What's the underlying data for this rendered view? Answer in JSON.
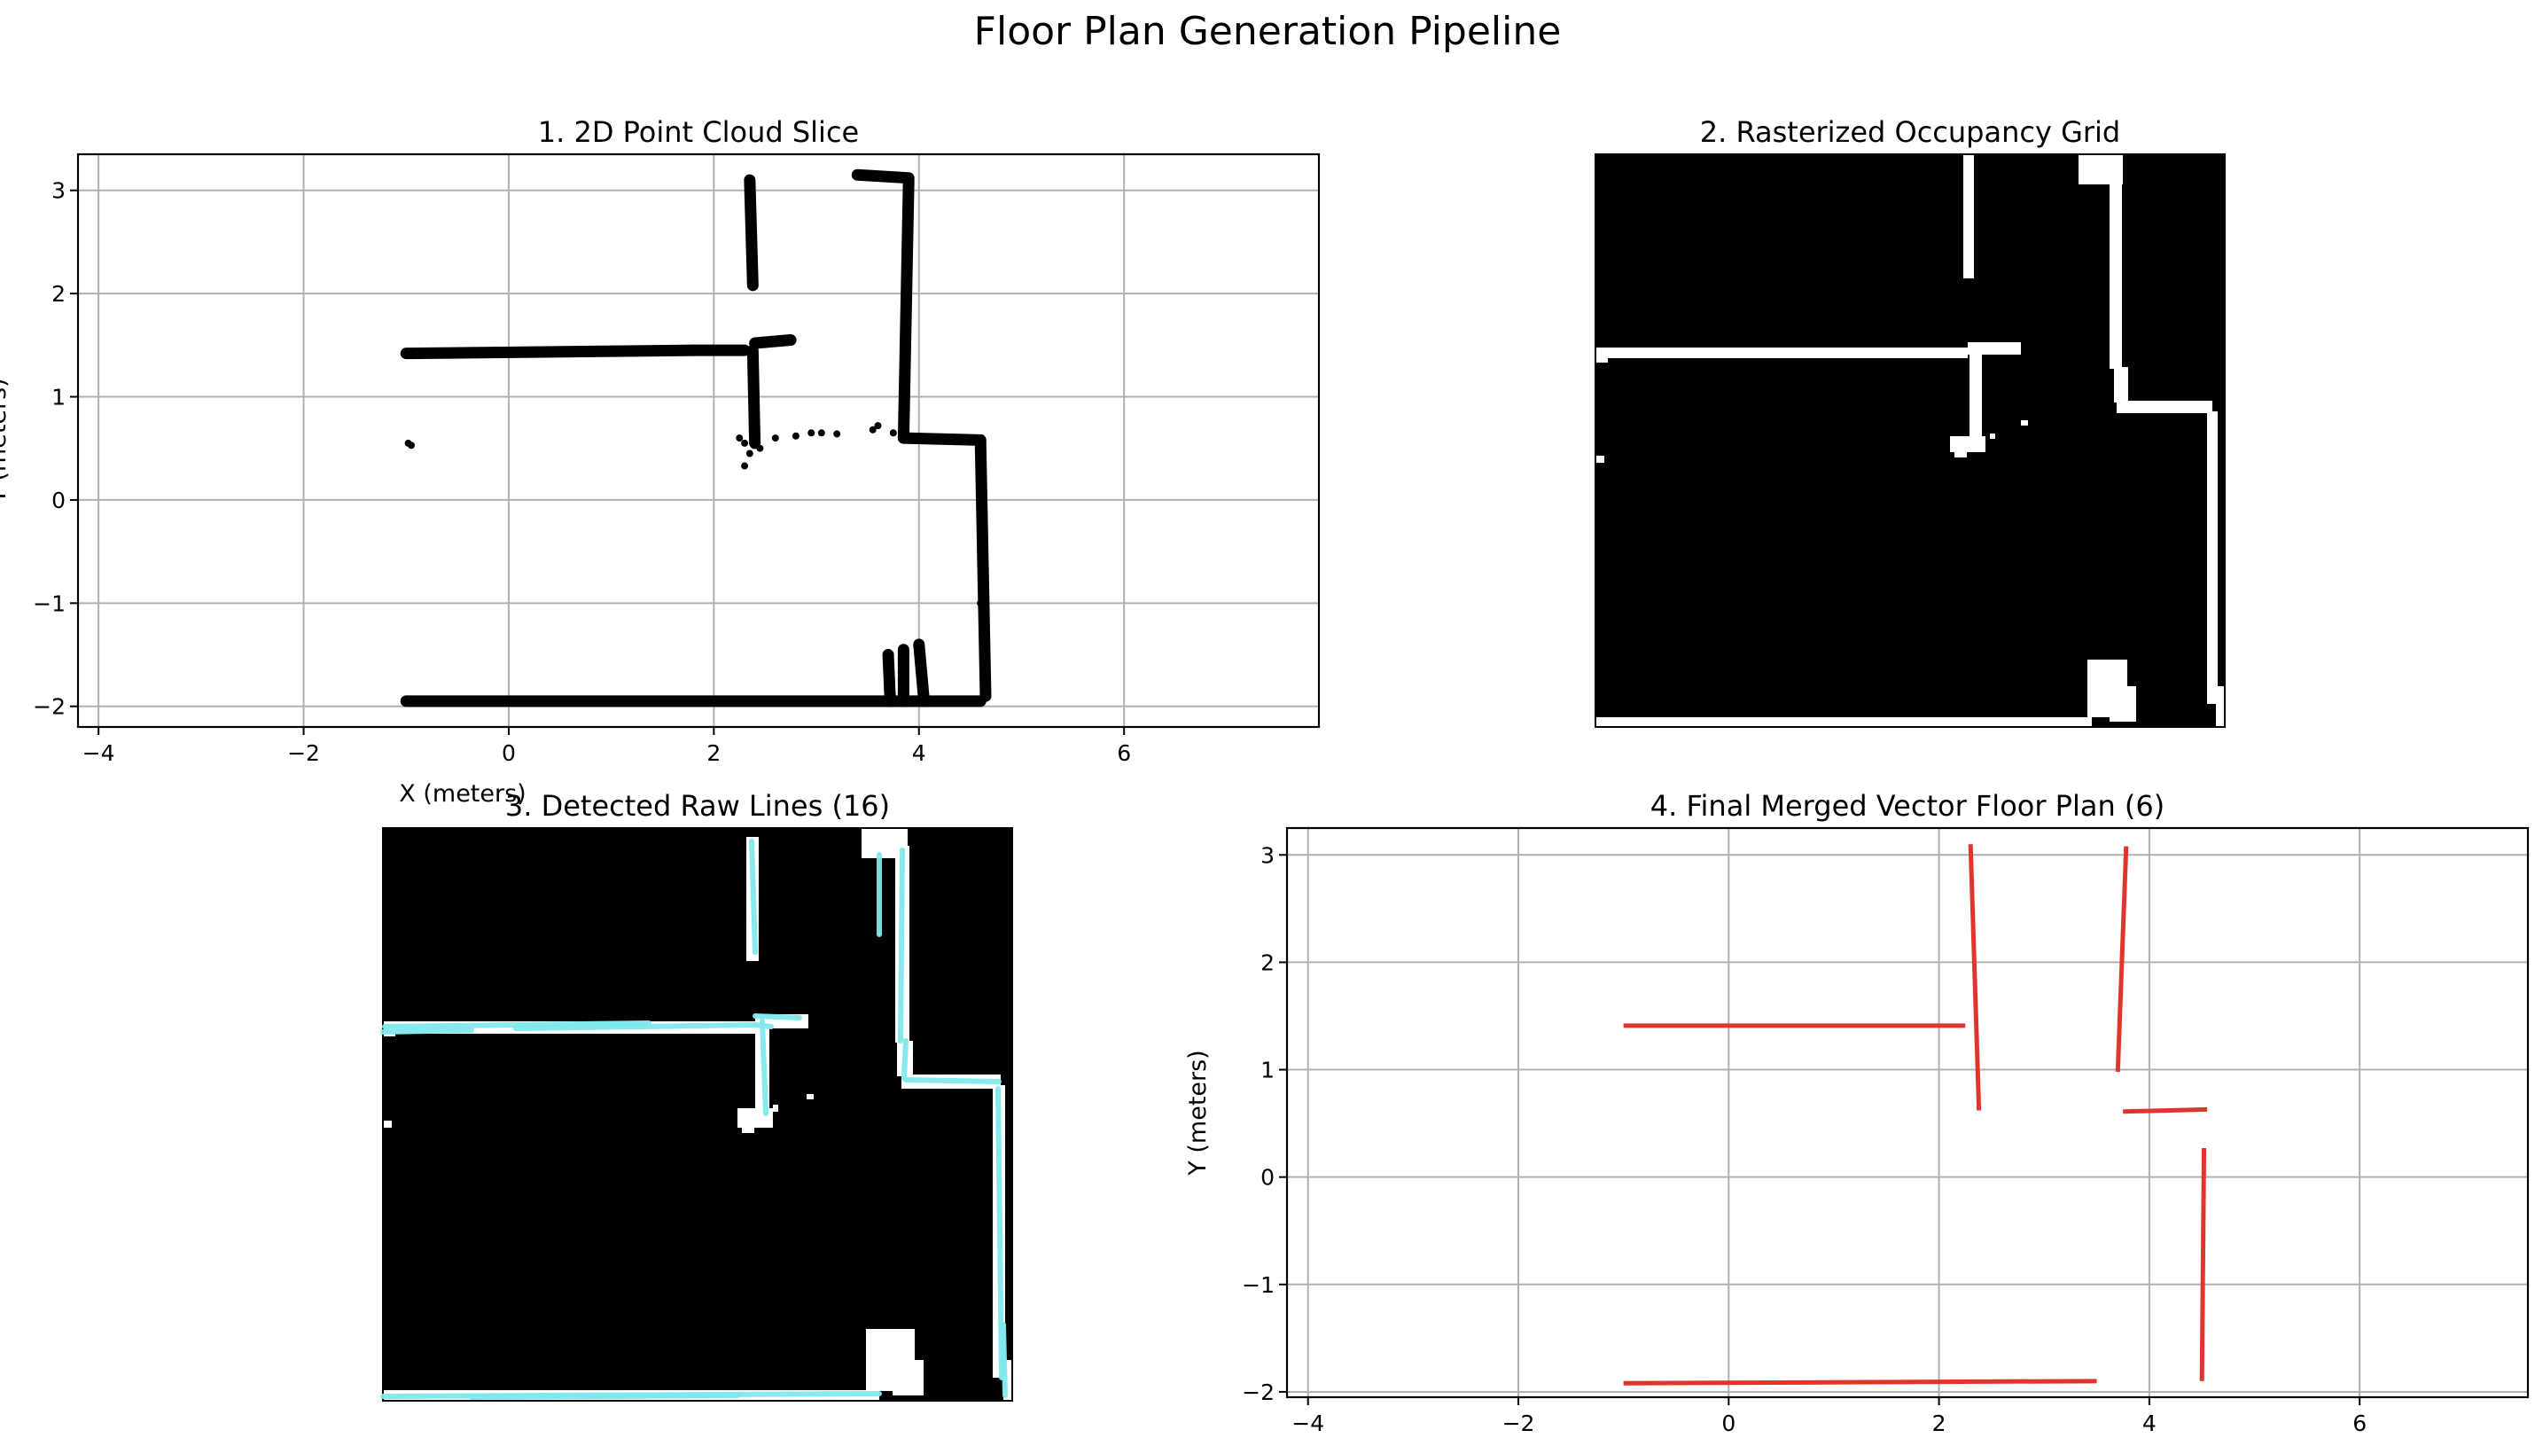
{
  "figure": {
    "title": "Floor Plan Generation Pipeline"
  },
  "chart_data": [
    {
      "id": "p1",
      "type": "scatter",
      "title": "1. 2D Point Cloud Slice",
      "xlabel": "X (meters)",
      "ylabel": "Y (meters)",
      "xlim": [
        -4.2,
        7.9
      ],
      "ylim": [
        -2.2,
        3.35
      ],
      "xticks": [
        -4,
        -2,
        0,
        2,
        4,
        6
      ],
      "xtick_labels": [
        "−4",
        "−2",
        "0",
        "2",
        "4",
        "6"
      ],
      "yticks": [
        -2,
        -1,
        0,
        1,
        2,
        3
      ],
      "ytick_labels": [
        "−2",
        "−1",
        "0",
        "1",
        "2",
        "3"
      ],
      "grid": true,
      "point_color": "#000000",
      "walls": [
        [
          [
            -1.0,
            1.42
          ],
          [
            1.8,
            1.45
          ]
        ],
        [
          [
            1.8,
            1.45
          ],
          [
            2.3,
            1.45
          ]
        ],
        [
          [
            2.4,
            1.52
          ],
          [
            2.75,
            1.55
          ]
        ],
        [
          [
            -1.0,
            -1.95
          ],
          [
            4.6,
            -1.95
          ]
        ],
        [
          [
            2.35,
            3.1
          ],
          [
            2.38,
            2.08
          ]
        ],
        [
          [
            3.4,
            3.15
          ],
          [
            3.9,
            3.12
          ]
        ],
        [
          [
            3.9,
            3.1
          ],
          [
            3.85,
            0.6
          ]
        ],
        [
          [
            3.85,
            0.6
          ],
          [
            4.6,
            0.58
          ]
        ],
        [
          [
            4.6,
            0.58
          ],
          [
            4.65,
            -1.9
          ]
        ],
        [
          [
            2.38,
            1.45
          ],
          [
            2.4,
            0.55
          ]
        ],
        [
          [
            3.7,
            -1.5
          ],
          [
            3.72,
            -1.95
          ]
        ],
        [
          [
            3.85,
            -1.45
          ],
          [
            3.85,
            -1.95
          ]
        ],
        [
          [
            4.0,
            -1.4
          ],
          [
            4.05,
            -1.95
          ]
        ]
      ],
      "blobs": [
        [
          2.3,
          0.55
        ],
        [
          2.35,
          0.45
        ],
        [
          2.25,
          0.6
        ],
        [
          2.45,
          0.5
        ],
        [
          -0.98,
          0.55
        ],
        [
          -0.95,
          0.53
        ],
        [
          2.3,
          0.33
        ],
        [
          3.6,
          0.72
        ],
        [
          3.55,
          0.68
        ],
        [
          3.75,
          0.65
        ],
        [
          2.6,
          0.6
        ],
        [
          2.8,
          0.62
        ],
        [
          2.95,
          0.65
        ],
        [
          3.05,
          0.65
        ],
        [
          3.2,
          0.64
        ],
        [
          4.65,
          -1.2
        ],
        [
          4.6,
          -1.0
        ]
      ]
    },
    {
      "id": "p2",
      "type": "heatmap",
      "title": "2. Rasterized Occupancy Grid",
      "colormap": [
        "#000000",
        "#ffffff"
      ]
    },
    {
      "id": "p3",
      "type": "heatmap",
      "title": "3. Detected Raw Lines (16)",
      "line_color": "#7fe8ee",
      "raw_lines_count": 16
    },
    {
      "id": "p4",
      "type": "line",
      "title": "4. Final Merged Vector Floor Plan (6)",
      "xlabel": "",
      "ylabel": "Y (meters)",
      "xlim": [
        -4.2,
        7.6
      ],
      "ylim": [
        -2.05,
        3.25
      ],
      "xticks": [
        -4,
        -2,
        0,
        2,
        4,
        6
      ],
      "xtick_labels": [
        "−4",
        "−2",
        "0",
        "2",
        "4",
        "6"
      ],
      "yticks": [
        -2,
        -1,
        0,
        1,
        2,
        3
      ],
      "ytick_labels": [
        "−2",
        "−1",
        "0",
        "1",
        "2",
        "3"
      ],
      "grid": true,
      "line_color": "#e0352b",
      "segments": [
        [
          [
            -1.0,
            1.41
          ],
          [
            2.25,
            1.41
          ]
        ],
        [
          [
            2.3,
            3.1
          ],
          [
            2.38,
            0.62
          ]
        ],
        [
          [
            3.78,
            3.08
          ],
          [
            3.7,
            0.98
          ]
        ],
        [
          [
            3.75,
            0.61
          ],
          [
            4.55,
            0.63
          ]
        ],
        [
          [
            4.52,
            0.27
          ],
          [
            4.5,
            -1.9
          ]
        ],
        [
          [
            -1.0,
            -1.92
          ],
          [
            3.5,
            -1.9
          ]
        ]
      ]
    }
  ]
}
